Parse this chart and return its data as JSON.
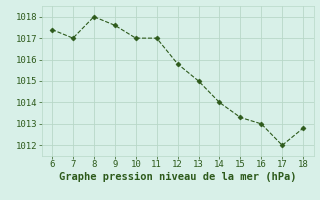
{
  "x": [
    6,
    7,
    8,
    9,
    10,
    11,
    12,
    13,
    14,
    15,
    16,
    17,
    18
  ],
  "y": [
    1017.4,
    1017.0,
    1018.0,
    1017.6,
    1017.0,
    1017.0,
    1015.8,
    1015.0,
    1014.0,
    1013.3,
    1013.0,
    1012.0,
    1012.8
  ],
  "line_color": "#2d5a1b",
  "marker": "D",
  "marker_size": 2.5,
  "bg_color": "#d8f0e8",
  "grid_color": "#b8d8c8",
  "xlabel": "Graphe pression niveau de la mer (hPa)",
  "xlabel_color": "#2d5a1b",
  "tick_color": "#2d5a1b",
  "xlim": [
    5.5,
    18.5
  ],
  "ylim": [
    1011.5,
    1018.5
  ],
  "yticks": [
    1012,
    1013,
    1014,
    1015,
    1016,
    1017,
    1018
  ],
  "xticks": [
    6,
    7,
    8,
    9,
    10,
    11,
    12,
    13,
    14,
    15,
    16,
    17,
    18
  ],
  "xlabel_fontsize": 7.5,
  "tick_fontsize": 6.5
}
